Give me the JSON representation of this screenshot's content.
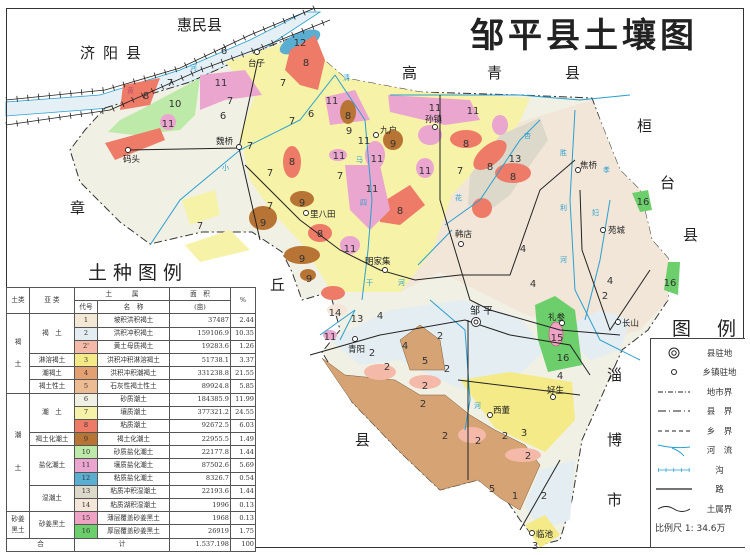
{
  "title": "邹平县土壤图",
  "neighbors": {
    "huimin": "惠民县",
    "jiyang": "济阳县",
    "gao": "高",
    "qing": "青",
    "xian_gq": "县",
    "huan": "桓",
    "tai": "台",
    "xian_ht": "县",
    "zhang": "章",
    "qiu": "丘",
    "xian_zq": "县",
    "zi": "淄",
    "bo": "博",
    "shi": "市"
  },
  "places": {
    "taizi": "台子",
    "weiqiao": "魏桥",
    "matou": "码头",
    "jiuhu": "九户",
    "sunzhen": "孙镇",
    "jiaoqiao": "焦桥",
    "libatian": "里八田",
    "handian": "韩店",
    "yuancheng": "苑城",
    "mingjiaji": "明家集",
    "zouping": "邹 平",
    "changshan": "长山",
    "qingyang": "青阳",
    "lican": "礼参",
    "haosheng": "好生",
    "xidong": "西董",
    "linchi": "临池"
  },
  "rivers": {
    "huang": "黄",
    "he1": "河",
    "xiao": "小",
    "qing": "清",
    "ma": "马",
    "si": "四",
    "xing": "杏",
    "hua": "花",
    "sheng": "胜",
    "li": "利",
    "xiao2": "孝",
    "fu": "妇",
    "he2": "河",
    "gan": "干",
    "he3": "河",
    "he4": "河"
  },
  "map": {
    "soil_labels": [
      "12",
      "8",
      "7",
      "6",
      "8",
      "7",
      "10",
      "11",
      "7",
      "11",
      "6",
      "8",
      "7",
      "6",
      "11",
      "9",
      "7",
      "8",
      "11",
      "7",
      "9",
      "8",
      "9",
      "9",
      "11",
      "9",
      "11",
      "9",
      "11",
      "11",
      "11",
      "11",
      "8",
      "7",
      "11",
      "8",
      "13",
      "8",
      "8",
      "4",
      "4",
      "16",
      "16",
      "2",
      "15",
      "16",
      "2",
      "4",
      "14",
      "13",
      "4",
      "11",
      "2",
      "2",
      "5",
      "2",
      "2",
      "2",
      "4",
      "3",
      "2",
      "2",
      "2",
      "5",
      "2",
      "1",
      "3",
      "7",
      "7",
      "7",
      "2",
      "4"
    ]
  },
  "soil_legend": {
    "title": "土种图例",
    "headers": {
      "soil_class": "土类",
      "subclass": "亚 类",
      "genus": "土　　　属",
      "code": "代号",
      "name": "名　称",
      "area": "面　积",
      "area_unit": "(亩)",
      "percent": "%"
    },
    "classes": {
      "he": "褐\n\n土",
      "chao": "潮\n\n\n土",
      "shajiang": "砂姜\n黑土"
    },
    "rows": [
      {
        "subclass": "褐　土",
        "code": "1",
        "name": "坡积洪积褐土",
        "area": "37487",
        "percent": "2.44",
        "color": "#f3e8d6"
      },
      {
        "subclass": "",
        "code": "2",
        "name": "洪积冲积褐土",
        "area": "159106.9",
        "percent": "10.35",
        "color": "#e4edf1"
      },
      {
        "subclass": "",
        "code": "2'",
        "name": "黄土母质褐土",
        "area": "19283.6",
        "percent": "1.26",
        "color": "#f4b9a8"
      },
      {
        "subclass": "淋溶褐土",
        "code": "3",
        "name": "洪积冲积淋溶褐土",
        "area": "51738.1",
        "percent": "3.37",
        "color": "#f4ea88"
      },
      {
        "subclass": "潮褐土",
        "code": "4",
        "name": "洪积冲积潮褐土",
        "area": "331238.8",
        "percent": "21.55",
        "color": "#e4a070"
      },
      {
        "subclass": "褐土性土",
        "code": "5",
        "name": "石灰性褐土性土",
        "area": "89924.8",
        "percent": "5.85",
        "color": "#eebc92"
      },
      {
        "subclass": "潮　土",
        "code": "6",
        "name": "砂质潮土",
        "area": "184385.9",
        "percent": "11.99",
        "color": "#f1f0e4"
      },
      {
        "subclass": "",
        "code": "7",
        "name": "壤质潮土",
        "area": "377321.2",
        "percent": "24.55",
        "color": "#f6f2a8"
      },
      {
        "subclass": "",
        "code": "8",
        "name": "粘质潮土",
        "area": "92672.5",
        "percent": "6.03",
        "color": "#ee7a68"
      },
      {
        "subclass": "褐土化潮土",
        "code": "9",
        "name": "褐土化潮土",
        "area": "22955.5",
        "percent": "1.49",
        "color": "#b87434"
      },
      {
        "subclass": "盐化潮土",
        "code": "10",
        "name": "砂质盐化潮土",
        "area": "22177.8",
        "percent": "1.44",
        "color": "#bdeaa8"
      },
      {
        "subclass": "",
        "code": "11",
        "name": "壤质盐化潮土",
        "area": "87502.6",
        "percent": "5.69",
        "color": "#eaa6cf"
      },
      {
        "subclass": "",
        "code": "12",
        "name": "粘质盐化潮土",
        "area": "8326.7",
        "percent": "0.54",
        "color": "#5aaed2"
      },
      {
        "subclass": "湿潮土",
        "code": "13",
        "name": "粘质冲积湿潮土",
        "area": "22193.6",
        "percent": "1.44",
        "color": "#dcd8ca"
      },
      {
        "subclass": "",
        "code": "14",
        "name": "粘质湖积湿潮土",
        "area": "1996",
        "percent": "0.13",
        "color": "#f4e6d8"
      },
      {
        "subclass": "砂姜黑土",
        "code": "15",
        "name": "薄层覆盖砂姜黑土",
        "area": "1968",
        "percent": "0.13",
        "color": "#f0a2c4"
      },
      {
        "subclass": "",
        "code": "16",
        "name": "厚层覆盖砂姜黑土",
        "area": "26919",
        "percent": "1.75",
        "color": "#6ccf6c"
      }
    ],
    "total": {
      "label_a": "合",
      "label_b": "计",
      "area": "1.537.198",
      "percent": "100"
    }
  },
  "symbol_legend": {
    "title": "图 例",
    "items": [
      {
        "icon": "county-seat-icon",
        "label": "县驻地"
      },
      {
        "icon": "town-seat-icon",
        "label": "乡镇驻地"
      },
      {
        "icon": "prefecture-boundary-icon",
        "label": "地市界"
      },
      {
        "icon": "county-boundary-icon",
        "label": "县　界"
      },
      {
        "icon": "township-boundary-icon",
        "label": "乡　界"
      },
      {
        "icon": "river-icon",
        "label": "河　流"
      },
      {
        "icon": "ditch-icon",
        "label": "沟"
      },
      {
        "icon": "road-icon",
        "label": "路"
      },
      {
        "icon": "soil-boundary-icon",
        "label": "土属界"
      }
    ],
    "scale": "比例尺 1: 34.6万"
  },
  "colors": {
    "river": "#2a9fd0",
    "yellow_river": "#e4f0f6",
    "line": "#222"
  }
}
